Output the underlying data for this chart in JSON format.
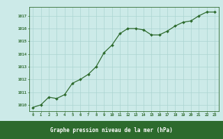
{
  "x": [
    0,
    1,
    2,
    3,
    4,
    5,
    6,
    7,
    8,
    9,
    10,
    11,
    12,
    13,
    14,
    15,
    16,
    17,
    18,
    19,
    20,
    21,
    22,
    23
  ],
  "y": [
    1009.8,
    1010.0,
    1010.6,
    1010.5,
    1010.8,
    1011.7,
    1012.0,
    1012.4,
    1013.0,
    1014.1,
    1014.7,
    1015.6,
    1016.0,
    1016.0,
    1015.9,
    1015.5,
    1015.5,
    1015.8,
    1016.2,
    1016.5,
    1016.6,
    1017.0,
    1017.3,
    1017.3
  ],
  "line_color": "#2d6a2d",
  "marker_color": "#2d6a2d",
  "bg_color": "#cceae8",
  "grid_color": "#aad4d0",
  "xlabel": "Graphe pression niveau de la mer (hPa)",
  "xlabel_bg": "#2d6a2d",
  "xlabel_text_color": "#ffffff",
  "yticks": [
    1010,
    1011,
    1012,
    1013,
    1014,
    1015,
    1016,
    1017
  ],
  "xticks": [
    0,
    1,
    2,
    3,
    4,
    5,
    6,
    7,
    8,
    9,
    10,
    11,
    12,
    13,
    14,
    15,
    16,
    17,
    18,
    19,
    20,
    21,
    22,
    23
  ],
  "ylim": [
    1009.5,
    1017.7
  ],
  "xlim": [
    -0.5,
    23.5
  ],
  "tick_label_color": "#1a4a1a",
  "spine_color": "#2d6a2d"
}
